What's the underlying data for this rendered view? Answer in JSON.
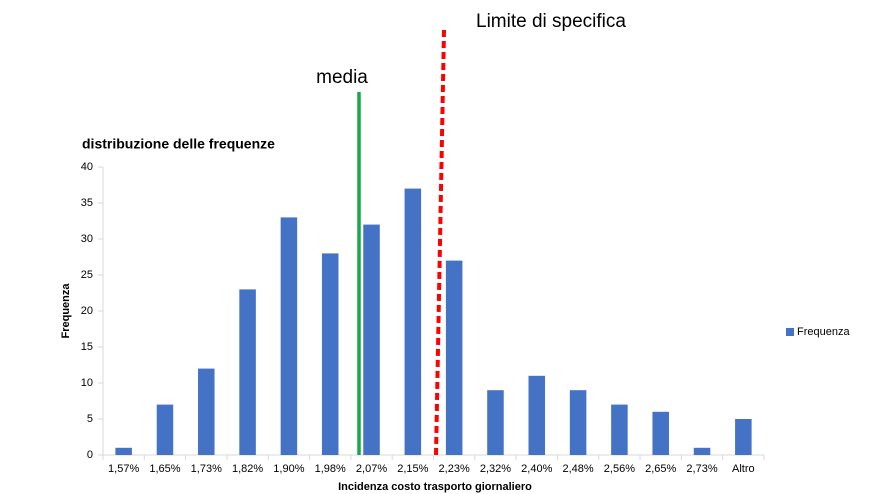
{
  "chart_data": {
    "type": "bar",
    "title": "distribuzione delle frequenze",
    "x_label": "Incidenza costo trasporto giornaliero",
    "y_label": "Frequenza",
    "categories": [
      "1,57%",
      "1,65%",
      "1,73%",
      "1,82%",
      "1,90%",
      "1,98%",
      "2,07%",
      "2,15%",
      "2,23%",
      "2,32%",
      "2,40%",
      "2,48%",
      "2,56%",
      "2,65%",
      "2,73%",
      "Altro"
    ],
    "series": [
      {
        "name": "Frequenza",
        "color": "#4472c4",
        "values": [
          1,
          7,
          12,
          23,
          33,
          28,
          32,
          37,
          27,
          9,
          11,
          9,
          7,
          6,
          1,
          5
        ]
      }
    ],
    "ylim": [
      0,
      40
    ],
    "yticks": [
      0,
      5,
      10,
      15,
      20,
      25,
      30,
      35,
      40
    ],
    "grid": false,
    "legend": "right",
    "annotations": [
      {
        "text": "media",
        "color": "#17a84a",
        "style": "solid"
      },
      {
        "text": "Limite di specifica",
        "color": "#ff0000",
        "style": "dashed"
      }
    ]
  }
}
